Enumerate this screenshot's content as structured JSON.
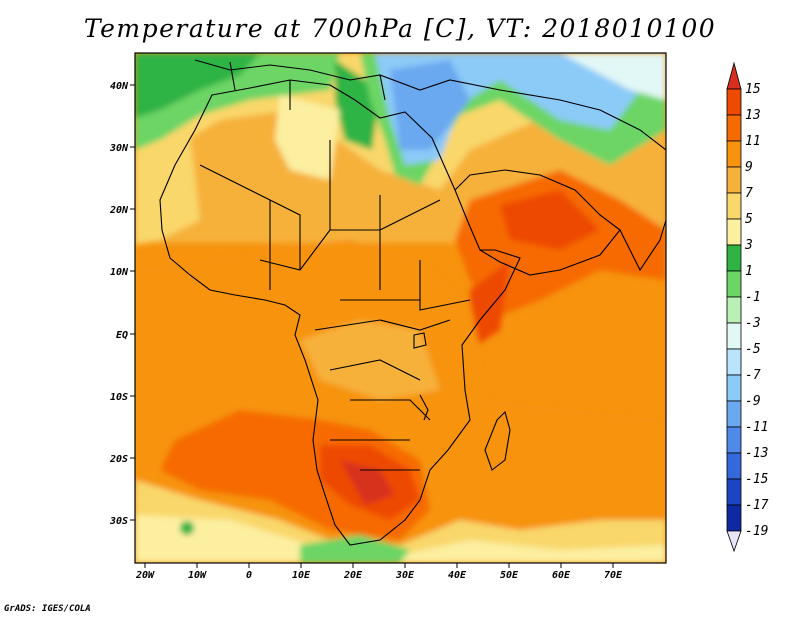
{
  "title": "Temperature at 700hPa [C], VT: 2018010100",
  "credit": "GrADS: IGES/COLA",
  "map": {
    "lon_ticks": [
      "20W",
      "10W",
      "0",
      "10E",
      "20E",
      "30E",
      "40E",
      "50E",
      "60E",
      "70E"
    ],
    "lat_ticks": [
      "40N",
      "30N",
      "20N",
      "10N",
      "EQ",
      "10S",
      "20S",
      "30S"
    ]
  },
  "colorbar": {
    "labels": [
      "15",
      "13",
      "11",
      "9",
      "7",
      "5",
      "3",
      "1",
      "-1",
      "-3",
      "-5",
      "-7",
      "-9",
      "-11",
      "-13",
      "-15",
      "-17",
      "-19"
    ],
    "colors": [
      "#d7301f",
      "#ee4a00",
      "#f66b00",
      "#f7930d",
      "#f6b13a",
      "#f9d76b",
      "#fcefa0",
      "#2fb344",
      "#6cd565",
      "#b8f0b5",
      "#e2f8f6",
      "#b9e5fc",
      "#8ccaf8",
      "#6aa8f0",
      "#4f8ae8",
      "#3569db",
      "#1c45c4",
      "#0d2aa3",
      "#101a6a"
    ]
  }
}
